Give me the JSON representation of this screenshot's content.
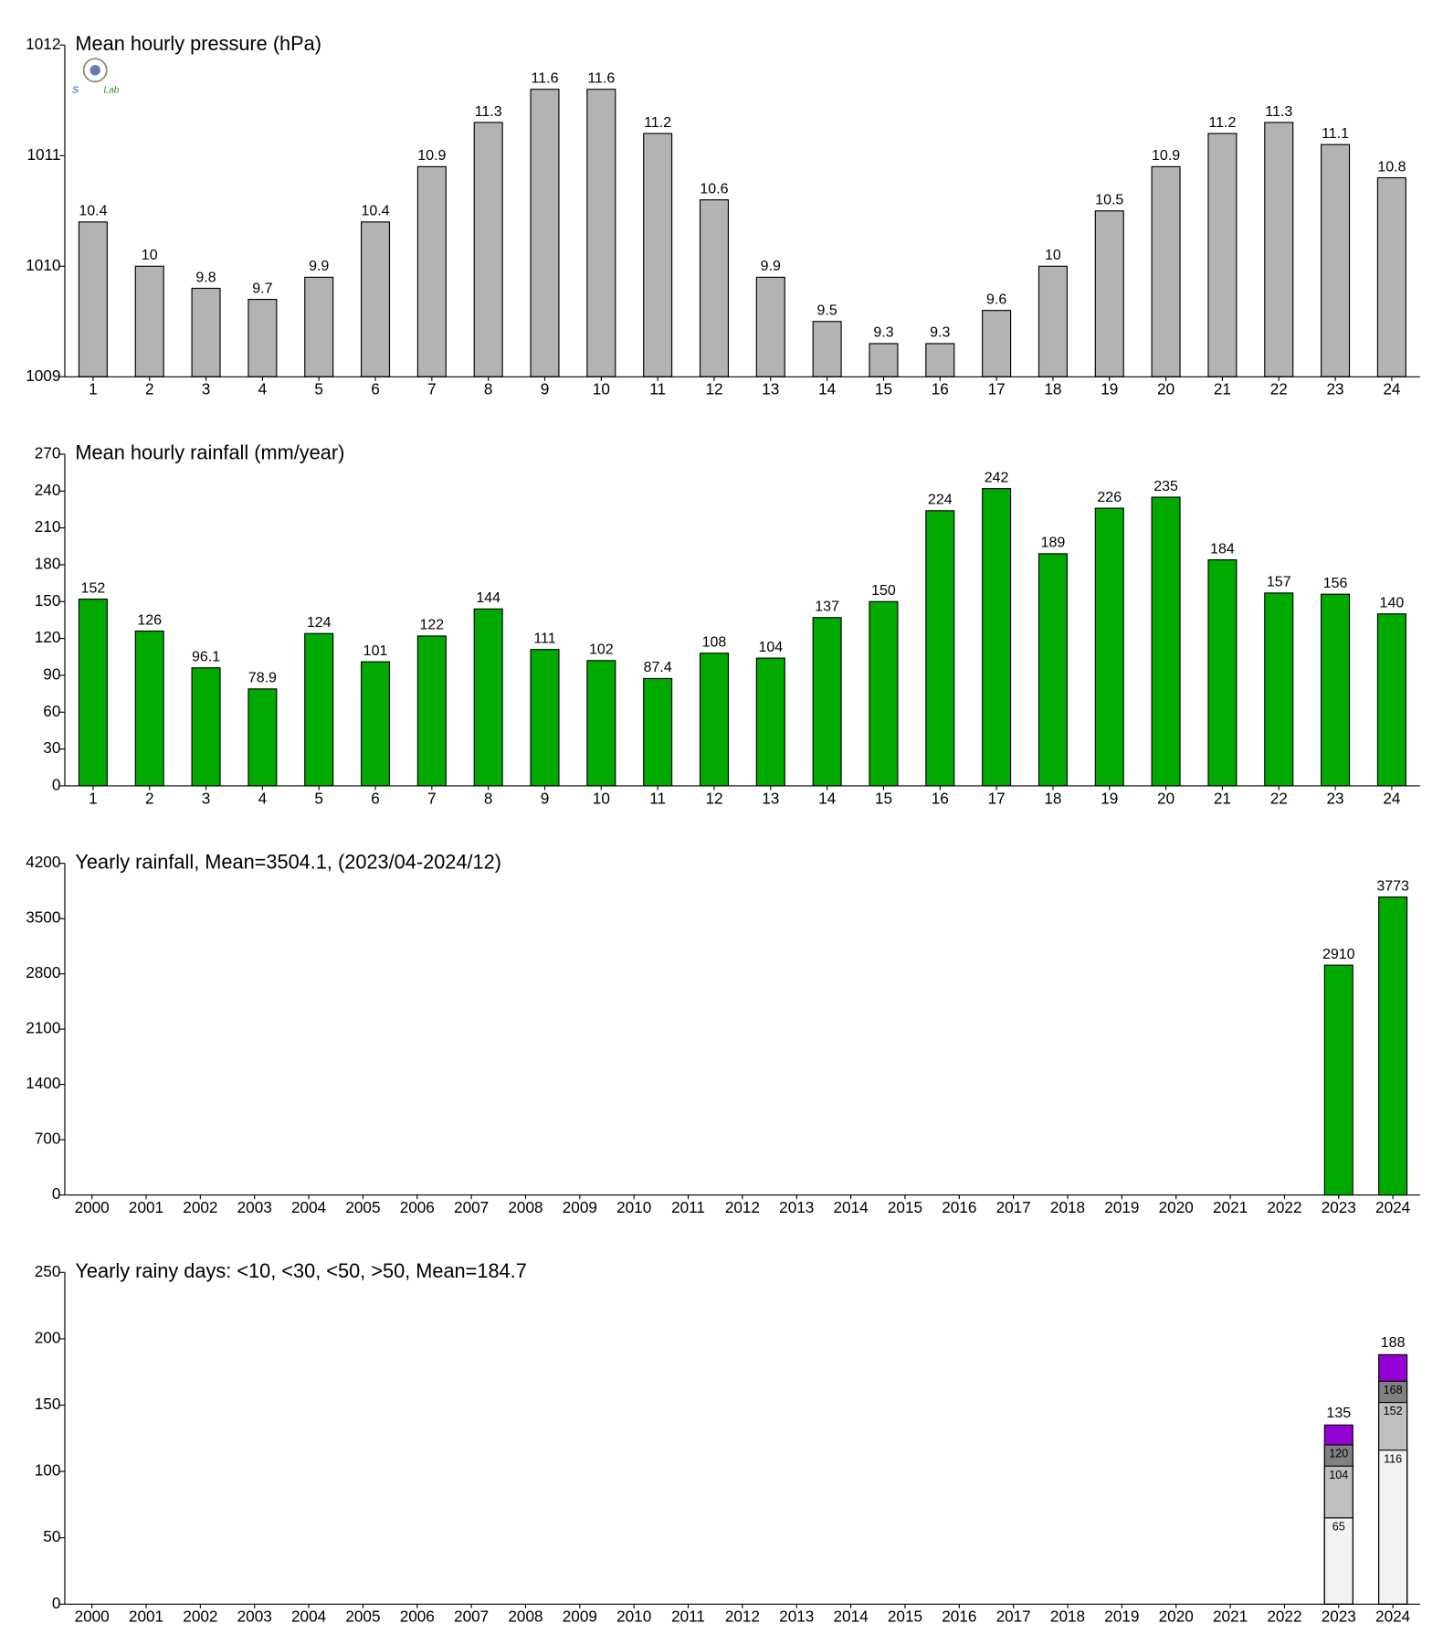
{
  "chart_data": [
    {
      "type": "bar",
      "title": "Mean hourly pressure (hPa)",
      "categories": [
        1,
        2,
        3,
        4,
        5,
        6,
        7,
        8,
        9,
        10,
        11,
        12,
        13,
        14,
        15,
        16,
        17,
        18,
        19,
        20,
        21,
        22,
        23,
        24
      ],
      "values": [
        1010.4,
        1010,
        1009.8,
        1009.7,
        1009.9,
        1010.4,
        1010.9,
        1011.3,
        1011.6,
        1011.6,
        1011.2,
        1010.6,
        1009.9,
        1009.5,
        1009.3,
        1009.3,
        1009.6,
        1010,
        1010.5,
        1010.9,
        1011.2,
        1011.3,
        1011.1,
        1010.8
      ],
      "value_labels": [
        "10.4",
        "10",
        "9.8",
        "9.7",
        "9.9",
        "10.4",
        "10.9",
        "11.3",
        "11.6",
        "11.6",
        "11.2",
        "10.6",
        "9.9",
        "9.5",
        "9.3",
        "9.3",
        "9.6",
        "10",
        "10.5",
        "10.9",
        "11.2",
        "11.3",
        "11.1",
        "10.8"
      ],
      "color": "#b3b3b3",
      "ylim": [
        1009,
        1012
      ],
      "yticks": [
        1009,
        1010,
        1011,
        1012
      ]
    },
    {
      "type": "bar",
      "title": "Mean hourly rainfall (mm/year)",
      "categories": [
        1,
        2,
        3,
        4,
        5,
        6,
        7,
        8,
        9,
        10,
        11,
        12,
        13,
        14,
        15,
        16,
        17,
        18,
        19,
        20,
        21,
        22,
        23,
        24
      ],
      "values": [
        152,
        126,
        96.1,
        78.9,
        124,
        101,
        122,
        144,
        111,
        102,
        87.4,
        108,
        104,
        137,
        150,
        224,
        242,
        189,
        226,
        235,
        184,
        157,
        156,
        140
      ],
      "color": "#00aa00",
      "ylim": [
        0,
        270
      ],
      "yticks": [
        0,
        30,
        60,
        90,
        120,
        150,
        180,
        210,
        240,
        270
      ]
    },
    {
      "type": "bar",
      "title": "Yearly rainfall, Mean=3504.1, (2023/04-2024/12)",
      "categories": [
        "2000",
        "2001",
        "2002",
        "2003",
        "2004",
        "2005",
        "2006",
        "2007",
        "2008",
        "2009",
        "2010",
        "2011",
        "2012",
        "2013",
        "2014",
        "2015",
        "2016",
        "2017",
        "2018",
        "2019",
        "2020",
        "2021",
        "2022",
        "2023",
        "2024"
      ],
      "values": [
        null,
        null,
        null,
        null,
        null,
        null,
        null,
        null,
        null,
        null,
        null,
        null,
        null,
        null,
        null,
        null,
        null,
        null,
        null,
        null,
        null,
        null,
        null,
        2910,
        3773
      ],
      "color": "#00aa00",
      "ylim": [
        0,
        4200
      ],
      "yticks": [
        0,
        700,
        1400,
        2100,
        2800,
        3500,
        4200
      ]
    },
    {
      "type": "overlapping_bar",
      "title": "Yearly rainy days: <10, <30, <50, >50, Mean=184.7",
      "categories": [
        "2000",
        "2001",
        "2002",
        "2003",
        "2004",
        "2005",
        "2006",
        "2007",
        "2008",
        "2009",
        "2010",
        "2011",
        "2012",
        "2013",
        "2014",
        "2015",
        "2016",
        "2017",
        "2018",
        "2019",
        "2020",
        "2021",
        "2022",
        "2023",
        "2024"
      ],
      "series": [
        {
          "color": "#f2f2f2",
          "values": [
            null,
            null,
            null,
            null,
            null,
            null,
            null,
            null,
            null,
            null,
            null,
            null,
            null,
            null,
            null,
            null,
            null,
            null,
            null,
            null,
            null,
            null,
            null,
            65,
            116
          ]
        },
        {
          "color": "#bfbfbf",
          "values": [
            null,
            null,
            null,
            null,
            null,
            null,
            null,
            null,
            null,
            null,
            null,
            null,
            null,
            null,
            null,
            null,
            null,
            null,
            null,
            null,
            null,
            null,
            null,
            104,
            152
          ]
        },
        {
          "color": "#808080",
          "values": [
            null,
            null,
            null,
            null,
            null,
            null,
            null,
            null,
            null,
            null,
            null,
            null,
            null,
            null,
            null,
            null,
            null,
            null,
            null,
            null,
            null,
            null,
            null,
            120,
            168
          ]
        },
        {
          "color": "#9400d3",
          "values": [
            null,
            null,
            null,
            null,
            null,
            null,
            null,
            null,
            null,
            null,
            null,
            null,
            null,
            null,
            null,
            null,
            null,
            null,
            null,
            null,
            null,
            null,
            null,
            135,
            188
          ]
        }
      ],
      "ylim": [
        0,
        250
      ],
      "yticks": [
        0,
        50,
        100,
        150,
        200,
        250
      ]
    }
  ]
}
